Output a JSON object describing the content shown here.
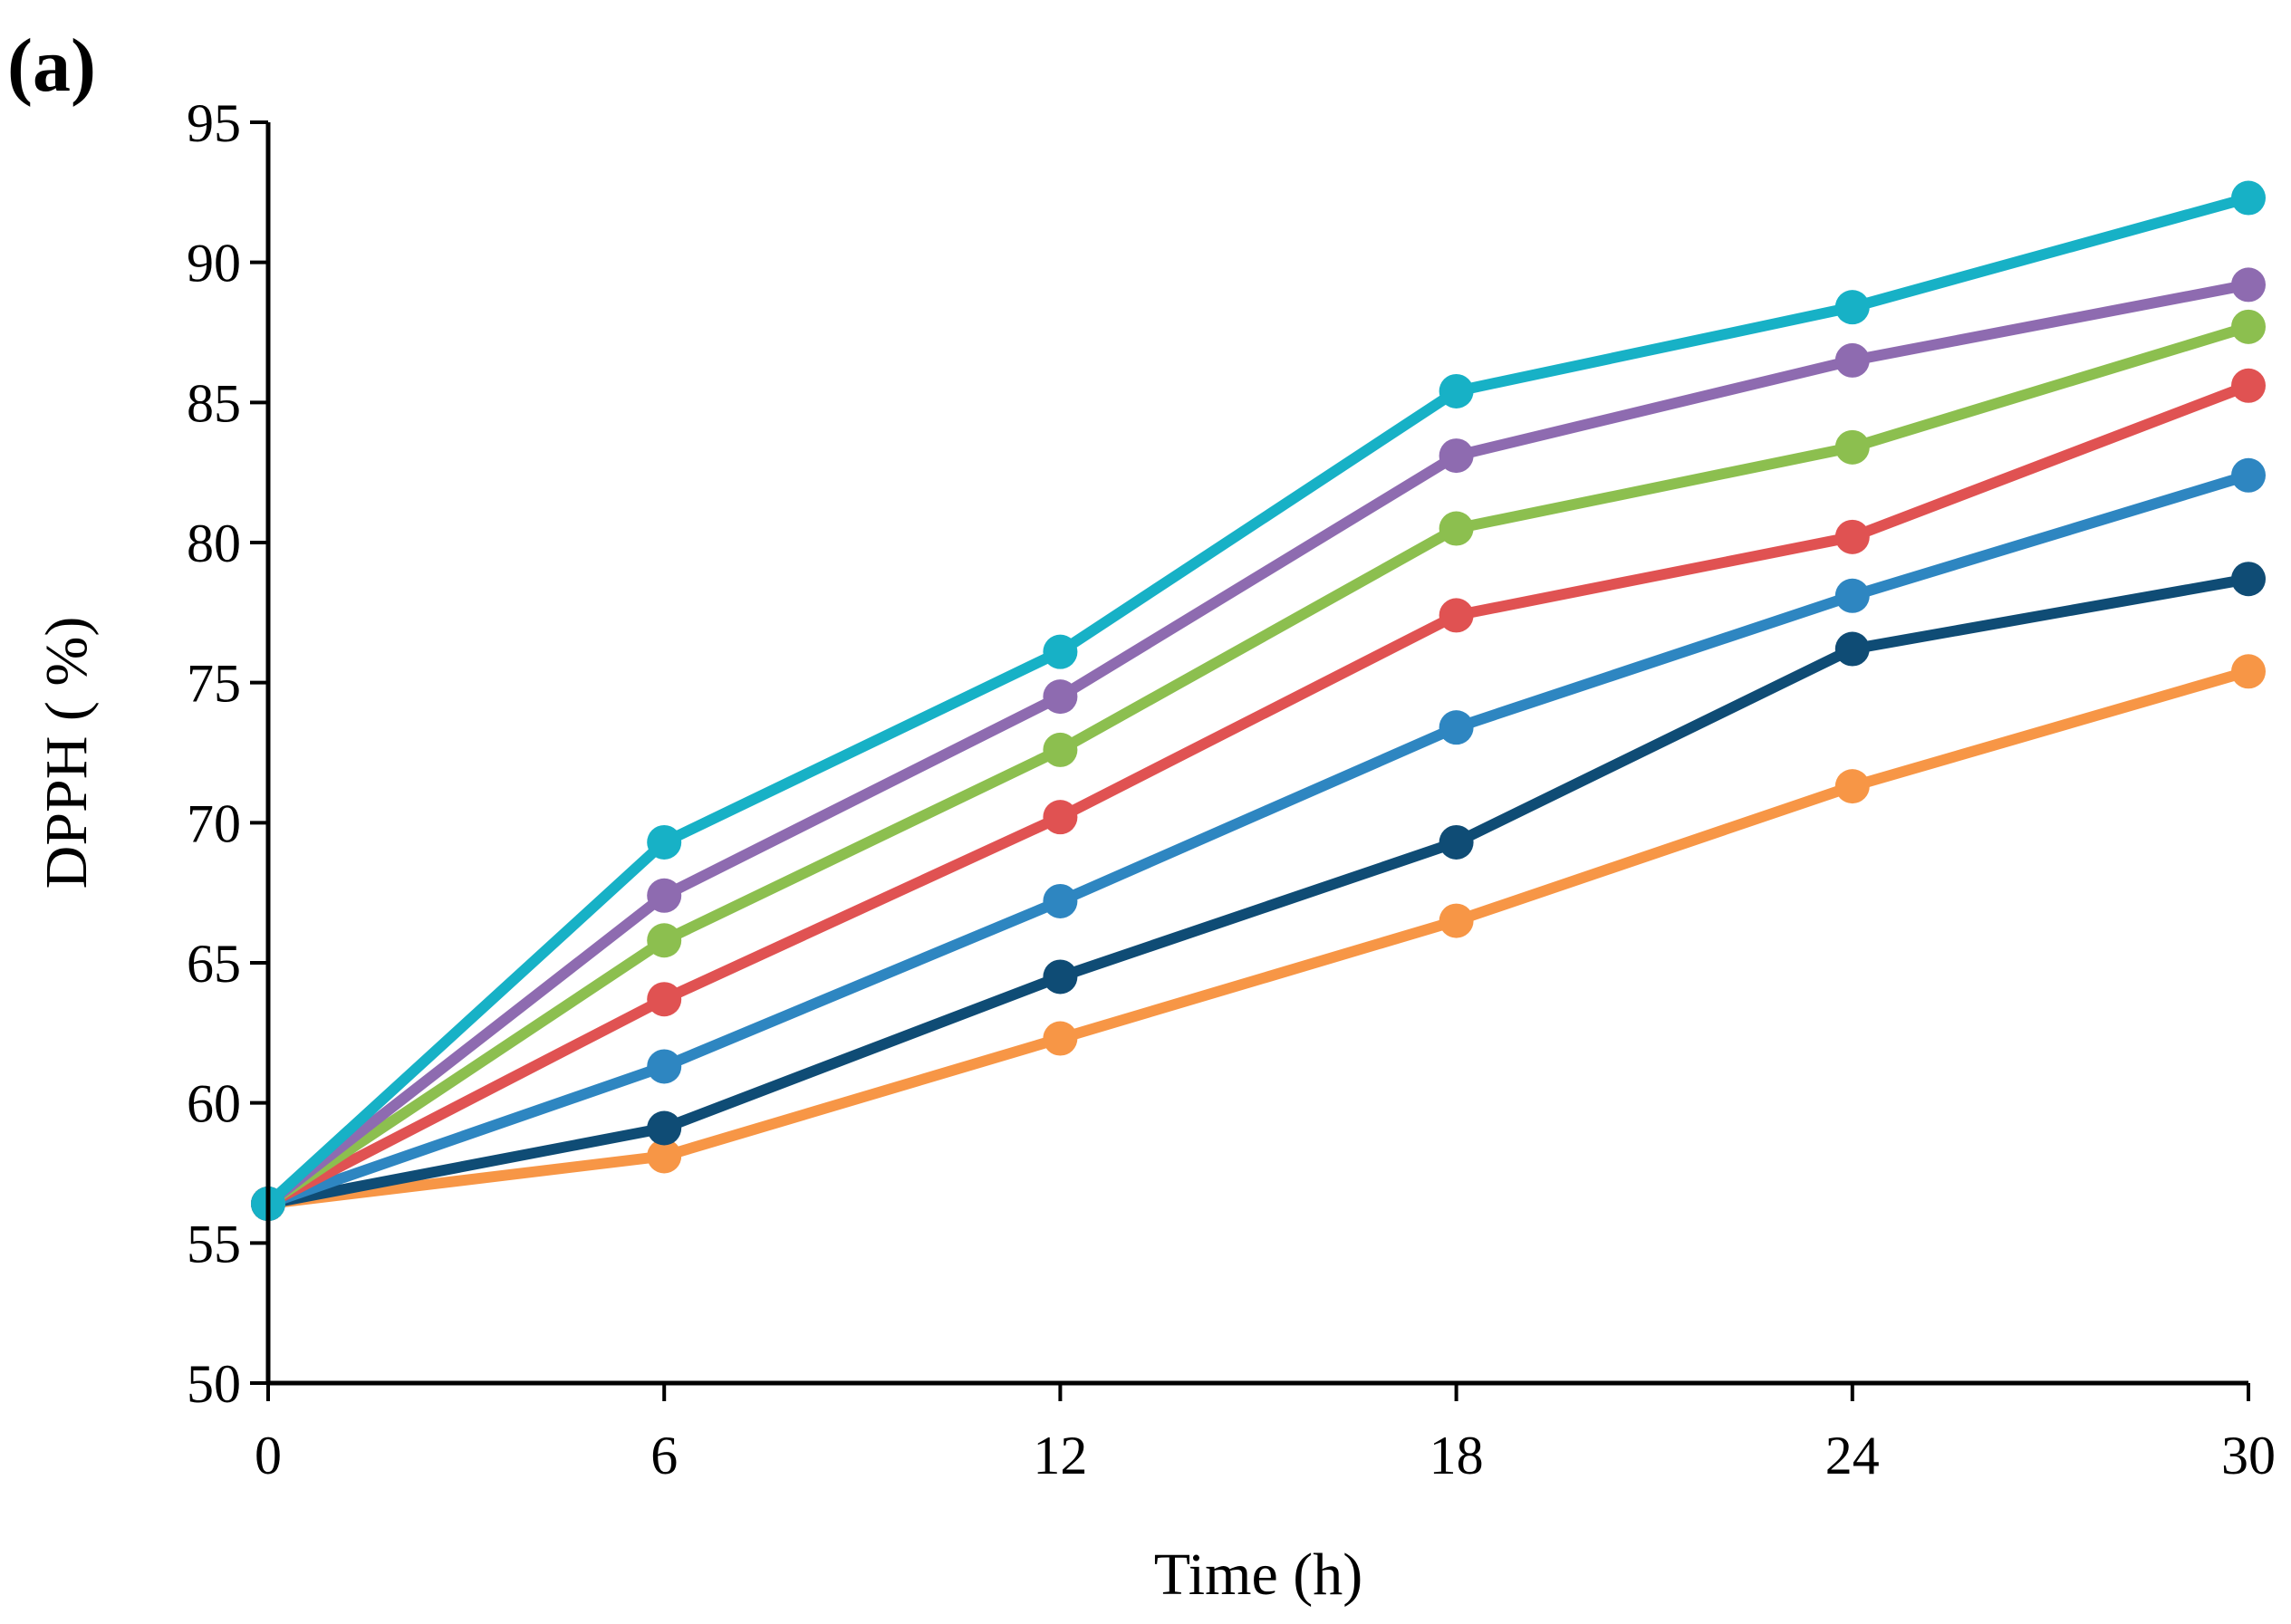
{
  "chart_data": {
    "type": "line",
    "panel_label": "(a)",
    "title": "",
    "xlabel": "Time (h)",
    "ylabel": "DPPH ( %)",
    "x": [
      0,
      6,
      12,
      18,
      24,
      30
    ],
    "x_tick_labels": [
      "0",
      "6",
      "12",
      "18",
      "24",
      "30"
    ],
    "xlim": [
      0,
      30
    ],
    "ylim": [
      50,
      95
    ],
    "y_ticks": [
      50,
      55,
      60,
      65,
      70,
      75,
      80,
      85,
      90,
      95
    ],
    "y_tick_labels": [
      "50",
      "55",
      "60",
      "65",
      "70",
      "75",
      "80",
      "85",
      "90",
      "95"
    ],
    "grid": false,
    "legend": "none",
    "series": [
      {
        "name": "series-orange",
        "color": "#F79646",
        "values": [
          56.4,
          58.1,
          62.3,
          66.5,
          71.3,
          75.4
        ]
      },
      {
        "name": "series-navy",
        "color": "#0F4C75",
        "values": [
          56.4,
          59.1,
          64.5,
          69.3,
          76.2,
          78.7
        ]
      },
      {
        "name": "series-blue",
        "color": "#2E86C1",
        "values": [
          56.4,
          61.3,
          67.2,
          73.4,
          78.1,
          82.4
        ]
      },
      {
        "name": "series-red",
        "color": "#E05252",
        "values": [
          56.4,
          63.7,
          70.2,
          77.4,
          80.2,
          85.6
        ]
      },
      {
        "name": "series-green",
        "color": "#8CBF4F",
        "values": [
          56.4,
          65.8,
          72.6,
          80.5,
          83.4,
          87.7
        ]
      },
      {
        "name": "series-purple",
        "color": "#8E6BB0",
        "values": [
          56.4,
          67.4,
          74.5,
          83.1,
          86.5,
          89.2
        ]
      },
      {
        "name": "series-cyan",
        "color": "#17B1C6",
        "values": [
          56.4,
          69.3,
          76.1,
          85.4,
          88.4,
          92.3
        ]
      }
    ]
  }
}
